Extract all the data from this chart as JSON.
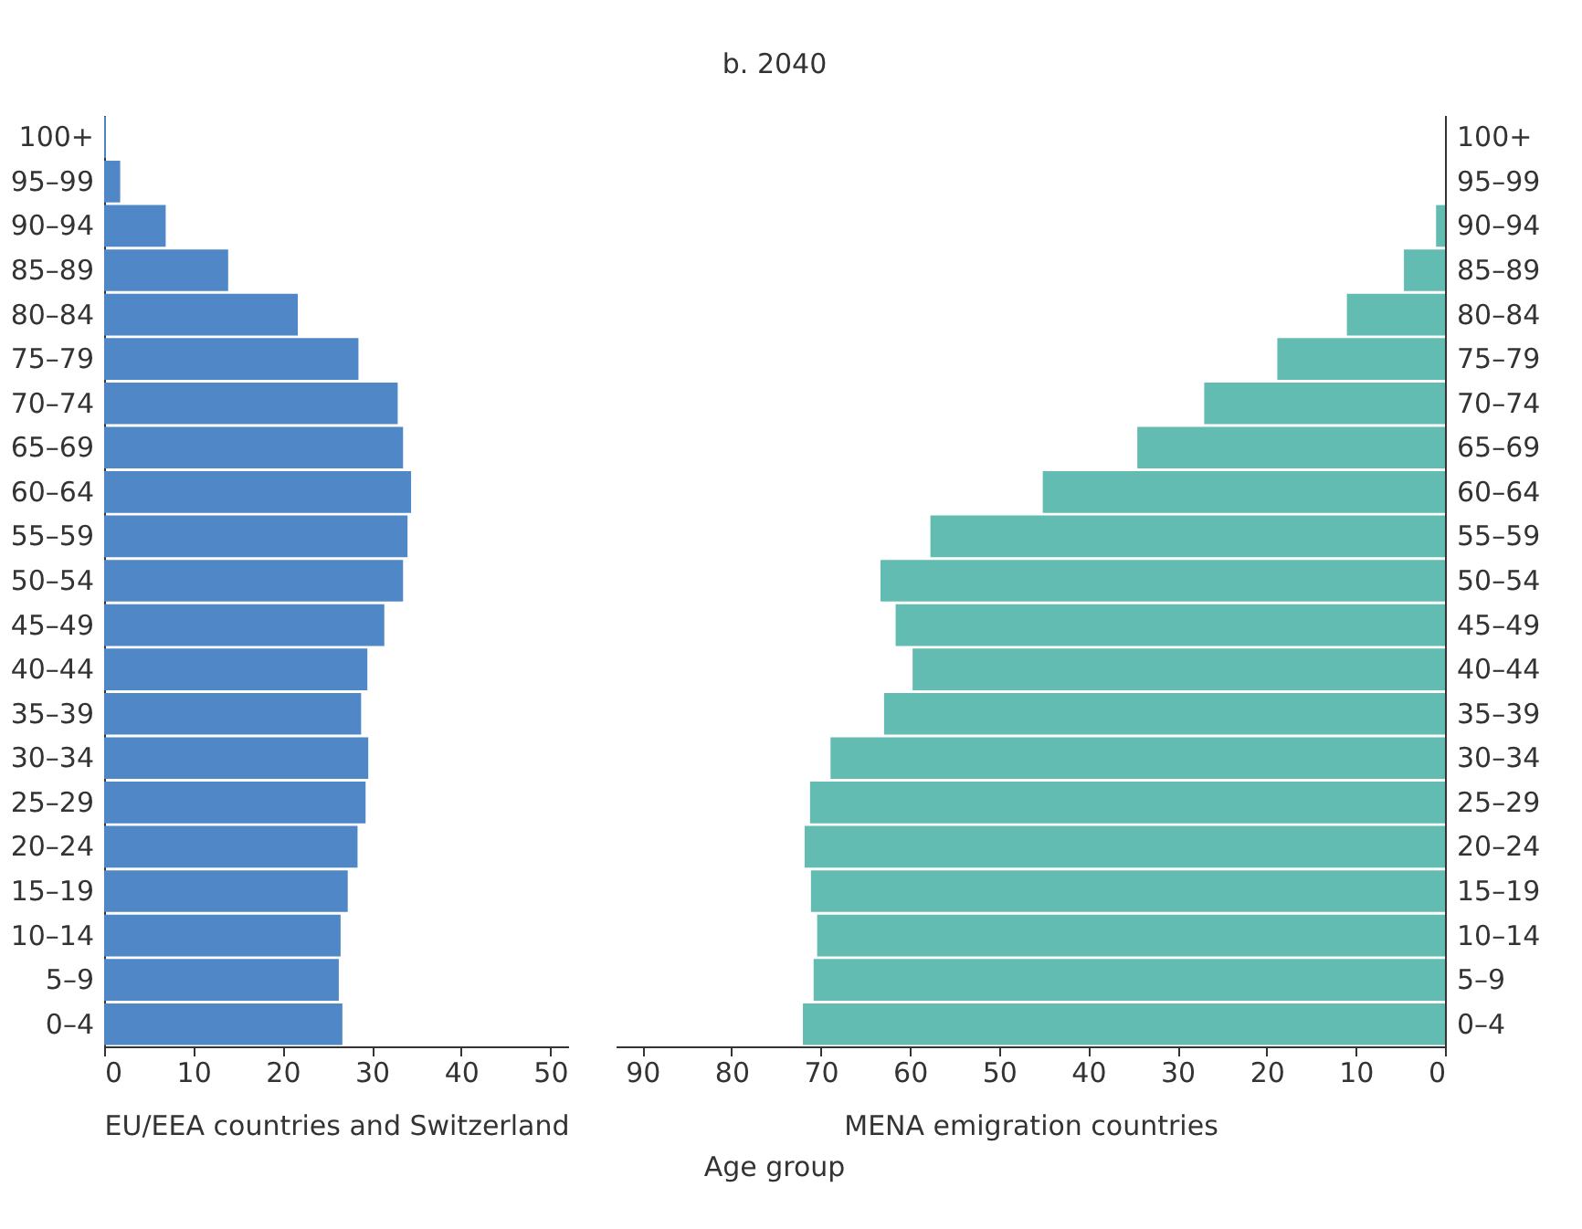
{
  "chart_data": [
    {
      "type": "bar",
      "orientation": "horizontal",
      "ylabel": "Age group",
      "xlabel": "EU/EEA countries and Switzerland",
      "categories": [
        "100+",
        "95–99",
        "90–94",
        "85–89",
        "80–84",
        "75–79",
        "70–74",
        "65–69",
        "60–64",
        "55–59",
        "50–54",
        "45–49",
        "40–44",
        "35–39",
        "30–34",
        "25–29",
        "20–24",
        "15–19",
        "10–14",
        "5–9",
        "0–4"
      ],
      "values": [
        0.2,
        1.8,
        6.9,
        13.9,
        21.7,
        28.5,
        32.9,
        33.5,
        34.4,
        34.0,
        33.5,
        31.4,
        29.5,
        28.8,
        29.6,
        29.3,
        28.4,
        27.3,
        26.5,
        26.3,
        26.7
      ],
      "color": "#4f87c7",
      "xlim": [
        0,
        52
      ],
      "xticks": [
        0,
        10,
        20,
        30,
        40,
        50
      ]
    },
    {
      "type": "bar",
      "orientation": "horizontal",
      "title": "b. 2040",
      "xlabel": "MENA emigration countries",
      "categories": [
        "100+",
        "95–99",
        "90–94",
        "85–89",
        "80–84",
        "75–79",
        "70–74",
        "65–69",
        "60–64",
        "55–59",
        "50–54",
        "45–49",
        "40–44",
        "35–39",
        "30–34",
        "25–29",
        "20–24",
        "15–19",
        "10–14",
        "5–9",
        "0–4"
      ],
      "values": [
        0,
        0,
        1.0,
        4.6,
        11.0,
        18.8,
        27.0,
        34.5,
        45.1,
        57.7,
        63.3,
        61.6,
        59.7,
        62.9,
        68.9,
        71.2,
        71.8,
        71.1,
        70.4,
        70.8,
        72.0
      ],
      "color": "#62bcb1",
      "xlim": [
        93,
        0
      ],
      "xticks": [
        90,
        80,
        70,
        60,
        50,
        40,
        30,
        20,
        10,
        0
      ]
    }
  ]
}
